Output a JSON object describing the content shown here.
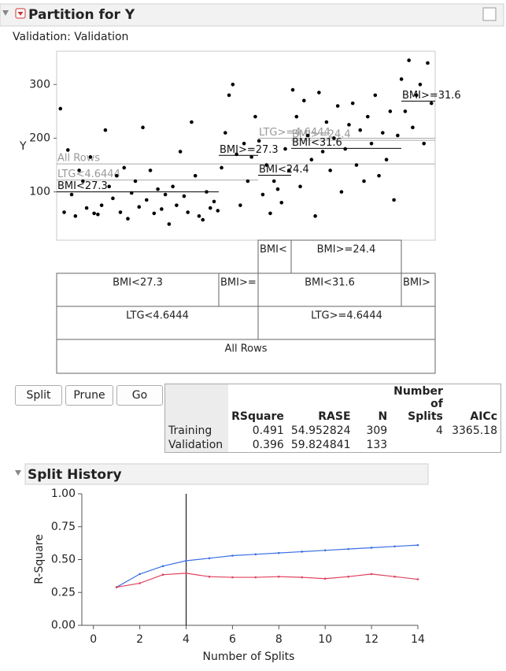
{
  "header": {
    "title": "Partition for Y",
    "validation": "Validation: Validation"
  },
  "chart_data": [
    {
      "type": "scatter",
      "y_label": "Y",
      "x": [
        1,
        2,
        3,
        4,
        5,
        6,
        7,
        8,
        9,
        10,
        11,
        12,
        13,
        14,
        15,
        16,
        17,
        18,
        19,
        20,
        21,
        22,
        23,
        24,
        25,
        26,
        27,
        28,
        29,
        30,
        31,
        32,
        33,
        34,
        35,
        36,
        37,
        38,
        39,
        40,
        41,
        42,
        43,
        44,
        45,
        46,
        47,
        48,
        49,
        50,
        51,
        52,
        53,
        54,
        55,
        56,
        57,
        58,
        59,
        60,
        61,
        62,
        63,
        64,
        65,
        66,
        67,
        68,
        69,
        70,
        71,
        72,
        73,
        74,
        75,
        76,
        77,
        78,
        79,
        80,
        81,
        82,
        83,
        84,
        85,
        86,
        87,
        88,
        89,
        90,
        91,
        92,
        93,
        94,
        95,
        96,
        97,
        98,
        99,
        100
      ],
      "values": [
        255,
        62,
        178,
        95,
        55,
        140,
        120,
        70,
        165,
        60,
        58,
        75,
        215,
        110,
        88,
        130,
        62,
        145,
        50,
        98,
        120,
        72,
        220,
        85,
        140,
        60,
        105,
        68,
        95,
        40,
        110,
        75,
        175,
        92,
        62,
        230,
        130,
        55,
        48,
        100,
        70,
        82,
        65,
        145,
        210,
        280,
        300,
        170,
        75,
        190,
        120,
        165,
        240,
        195,
        95,
        150,
        60,
        120,
        105,
        80,
        180,
        140,
        290,
        240,
        110,
        270,
        205,
        160,
        55,
        285,
        175,
        230,
        140,
        200,
        260,
        100,
        180,
        225,
        265,
        150,
        215,
        120,
        240,
        190,
        280,
        130,
        210,
        160,
        250,
        85,
        205,
        310,
        250,
        345,
        220,
        280,
        300,
        190,
        340,
        265
      ],
      "xlim": [
        0,
        101
      ],
      "ylim": [
        10,
        362
      ],
      "yticks": [
        100,
        200,
        300
      ],
      "split_lines": [
        {
          "label": "All Rows",
          "value": 152
        },
        {
          "label": "LTG<4.6444",
          "value": 122
        },
        {
          "label": "LTG>=4.6444",
          "value": 200
        },
        {
          "label": "BMI<27.3",
          "value": 100
        },
        {
          "label": "BMI>=27.3",
          "value": 168
        },
        {
          "label": "BMI<24.4",
          "value": 131
        },
        {
          "label": "BMI>=24.4",
          "value": 196
        },
        {
          "label": "BMI<31.6",
          "value": 181
        },
        {
          "label": "BMI>=31.6",
          "value": 269
        }
      ]
    },
    {
      "type": "line",
      "title": "Split History",
      "x_label": "Number of Splits",
      "y_label": "R-Square",
      "x": [
        1,
        2,
        3,
        4,
        5,
        6,
        7,
        8,
        9,
        10,
        11,
        12,
        13,
        14
      ],
      "series": [
        {
          "color": "#3b6fe3",
          "values": [
            0.29,
            0.39,
            0.45,
            0.491,
            0.51,
            0.53,
            0.54,
            0.55,
            0.56,
            0.57,
            0.58,
            0.59,
            0.6,
            0.61
          ]
        },
        {
          "color": "#e0405e",
          "values": [
            0.29,
            0.32,
            0.385,
            0.396,
            0.37,
            0.365,
            0.365,
            0.37,
            0.365,
            0.355,
            0.37,
            0.39,
            0.37,
            0.35
          ]
        }
      ],
      "reference_x": 4,
      "xlim": [
        -0.5,
        14
      ],
      "ylim": [
        0,
        1
      ],
      "xticks": [
        0,
        2,
        4,
        6,
        8,
        10,
        12,
        14
      ],
      "yticks": [
        {
          "value": 0,
          "label": "0.00"
        },
        {
          "value": 0.25,
          "label": "0.25"
        },
        {
          "value": 0.5,
          "label": "0.50"
        },
        {
          "value": 0.75,
          "label": "0.75"
        },
        {
          "value": 1,
          "label": "1.00"
        }
      ]
    }
  ],
  "tree": {
    "nodes": [
      {
        "label": "BMI<"
      },
      {
        "label": "BMI>=24.4"
      },
      {
        "label": "BMI<27.3"
      },
      {
        "label": "BMI>="
      },
      {
        "label": "BMI<31.6"
      },
      {
        "label": "BMI>"
      },
      {
        "label": "LTG<4.6444"
      },
      {
        "label": "LTG>=4.6444"
      },
      {
        "label": "All Rows"
      }
    ]
  },
  "buttons": [
    "Split",
    "Prune",
    "Go"
  ],
  "table": {
    "columns": [
      "RSquare",
      "RASE",
      "N",
      "Number of Splits",
      "AICc"
    ],
    "rows": [
      [
        "Training",
        "0.491",
        "54.952824",
        "309",
        "4",
        "3365.18"
      ],
      [
        "Validation",
        "0.396",
        "59.824841",
        "133"
      ]
    ]
  }
}
